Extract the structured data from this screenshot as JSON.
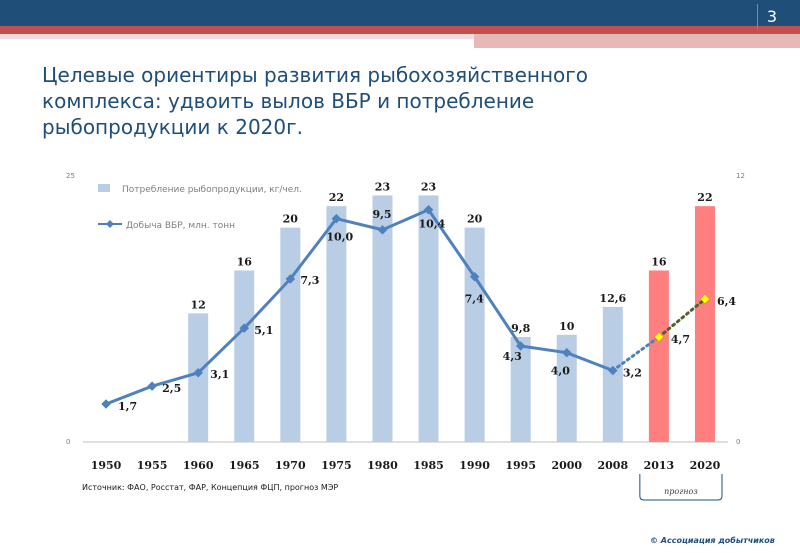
{
  "slide": {
    "number": "3",
    "title": "Целевые ориентиры развития рыбохозяйственного комплекса: удвоить вылов ВБР и потребление рыбопродукции к 2020г.",
    "source_note": "Источник: ФАО, Росстат, ФАР, Концепция ФЦП, прогноз МЭР",
    "forecast_label": "прогноз",
    "footer": "© Ассоциация добытчиков"
  },
  "chart_data": {
    "type": "bar",
    "categories": [
      "1950",
      "1955",
      "1960",
      "1965",
      "1970",
      "1975",
      "1980",
      "1985",
      "1990",
      "1995",
      "2000",
      "2008",
      "2013",
      "2020"
    ],
    "y_left_ticks": [
      "25",
      "0"
    ],
    "y_right_ticks": [
      "12",
      "0"
    ],
    "ylim_left": [
      0,
      25
    ],
    "ylim_right": [
      0,
      12
    ],
    "series": [
      {
        "name": "Потребление рыбопродукции, кг/чел.",
        "type": "bar",
        "axis": "left",
        "values": [
          null,
          null,
          12,
          16,
          20,
          22,
          23,
          23,
          20,
          9.8,
          10,
          12.6,
          16,
          22
        ],
        "labels": [
          "",
          "",
          "12",
          "16",
          "20",
          "22",
          "23",
          "23",
          "20",
          "9,8",
          "10",
          "12,6",
          "16",
          "22"
        ],
        "color": "#b9cde5",
        "forecast_color": "#ff7f7f"
      },
      {
        "name": "Добыча ВБР, млн. тонн",
        "type": "line",
        "axis": "right",
        "values": [
          1.7,
          2.5,
          3.1,
          5.1,
          7.3,
          10.0,
          9.5,
          10.4,
          7.4,
          4.3,
          4.0,
          3.2,
          4.7,
          6.4
        ],
        "labels": [
          "1,7",
          "2,5",
          "3,1",
          "5,1",
          "7,3",
          "10,0",
          "9,5",
          "10,4",
          "7,4",
          "4,3",
          "4,0",
          "3,2",
          "4,7",
          "6,4"
        ],
        "color": "#4f81bd",
        "forecast_color": "#ffff00"
      }
    ],
    "forecast_categories": [
      "2013",
      "2020"
    ]
  }
}
